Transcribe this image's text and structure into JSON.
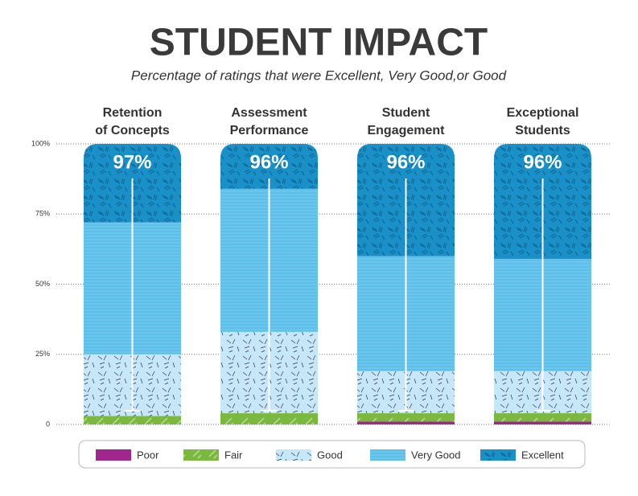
{
  "chart_data": {
    "type": "stacked-bar",
    "title": "STUDENT IMPACT",
    "subtitle": "Percentage of ratings that were Excellent, Very Good,or Good",
    "categories": [
      [
        "Retention",
        "of Concepts"
      ],
      [
        "Assessment",
        "Performance"
      ],
      [
        "Student",
        "Engagement"
      ],
      [
        "Exceptional",
        "Students"
      ]
    ],
    "series": [
      {
        "name": "Poor",
        "color": "#a0288c",
        "values": [
          0,
          0,
          1,
          1
        ]
      },
      {
        "name": "Fair",
        "color": "#7ab83e",
        "values": [
          3,
          4,
          3,
          3
        ]
      },
      {
        "name": "Good",
        "color": "#c6e7f8",
        "values": [
          22,
          29,
          15,
          15
        ]
      },
      {
        "name": "Very Good",
        "color": "#5cc0ea",
        "values": [
          47,
          51,
          41,
          40
        ]
      },
      {
        "name": "Excellent",
        "color": "#1990c8",
        "values": [
          28,
          16,
          40,
          41
        ]
      }
    ],
    "totals": {
      "values": [
        97,
        96,
        96,
        96
      ],
      "value_labels": [
        "97%",
        "96%",
        "96%",
        "96%"
      ]
    },
    "ylim": [
      0,
      100
    ],
    "yticks": [
      0,
      {
        "value": 25,
        "label": "25%"
      },
      {
        "value": 50,
        "label": "50%"
      },
      {
        "value": 75,
        "label": "75%"
      },
      {
        "value": 100,
        "label": "100%"
      }
    ],
    "grid": true,
    "legend": "bottom"
  }
}
